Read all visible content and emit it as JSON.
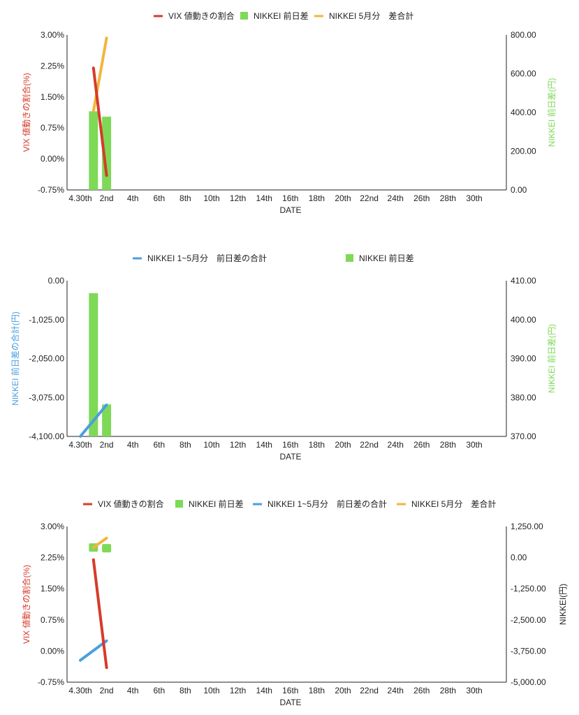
{
  "colors": {
    "vix": "#d63b2a",
    "nikkei_diff": "#7ed957",
    "nikkei_total": "#4a9fe0",
    "nikkei_may": "#f2b53d",
    "axis": "#222222"
  },
  "chart_data": [
    {
      "type": "bar+line",
      "xlabel": "DATE",
      "x_ticks": [
        "4.30th",
        "2nd",
        "4th",
        "6th",
        "8th",
        "10th",
        "12th",
        "14th",
        "16th",
        "18th",
        "20th",
        "22nd",
        "24th",
        "26th",
        "28th",
        "30th"
      ],
      "left_axis": {
        "label": "VIX 値動きの割合(%)",
        "ticks": [
          "3.00%",
          "2.25%",
          "1.50%",
          "0.75%",
          "0.00%",
          "-0.75%"
        ],
        "range": [
          -0.75,
          3.0
        ]
      },
      "right_axis": {
        "label": "NIKKEI 前日差(円)",
        "ticks": [
          "800.00",
          "600.00",
          "400.00",
          "200.00",
          "0.00"
        ],
        "range": [
          0,
          800
        ]
      },
      "legend": [
        "VIX 値動きの割合",
        "NIKKEI 前日差",
        "NIKKEI 5月分　差合計"
      ],
      "series": [
        {
          "name": "VIX 値動きの割合",
          "type": "line",
          "axis": "left",
          "color_key": "vix",
          "points": [
            [
              1,
              2.2
            ],
            [
              2,
              -0.4
            ]
          ]
        },
        {
          "name": "NIKKEI 前日差",
          "type": "bar",
          "axis": "right",
          "color_key": "nikkei_diff",
          "points": [
            [
              1,
              406
            ],
            [
              2,
              378
            ]
          ]
        },
        {
          "name": "NIKKEI 5月分　差合計",
          "type": "line",
          "axis": "right",
          "color_key": "nikkei_may",
          "points": [
            [
              1,
              406
            ],
            [
              2,
              784
            ]
          ]
        }
      ]
    },
    {
      "type": "bar+line",
      "xlabel": "DATE",
      "x_ticks": [
        "4.30th",
        "2nd",
        "4th",
        "6th",
        "8th",
        "10th",
        "12th",
        "14th",
        "16th",
        "18th",
        "20th",
        "22nd",
        "24th",
        "26th",
        "28th",
        "30th"
      ],
      "left_axis": {
        "label": "NIKKEI 前日差の合計(円)",
        "ticks": [
          "0.00",
          "-1,025.00",
          "-2,050.00",
          "-3,075.00",
          "-4,100.00"
        ],
        "range": [
          -4100,
          0
        ]
      },
      "right_axis": {
        "label": "NIKKEI 前日差(円)",
        "ticks": [
          "410.00",
          "400.00",
          "390.00",
          "380.00",
          "370.00"
        ],
        "range": [
          370,
          410
        ]
      },
      "legend": [
        "NIKKEI 1~5月分　前日差の合計",
        "NIKKEI 前日差"
      ],
      "series": [
        {
          "name": "NIKKEI 1~5月分　前日差の合計",
          "type": "line",
          "axis": "left",
          "color_key": "nikkei_total",
          "points": [
            [
              0,
              -4100
            ],
            [
              2,
              -3270
            ]
          ]
        },
        {
          "name": "NIKKEI 前日差",
          "type": "bar",
          "axis": "right",
          "color_key": "nikkei_diff",
          "points": [
            [
              1,
              406.8
            ],
            [
              2,
              378.2
            ]
          ]
        }
      ]
    },
    {
      "type": "bar+line",
      "xlabel": "DATE",
      "x_ticks": [
        "4.30th",
        "2nd",
        "4th",
        "6th",
        "8th",
        "10th",
        "12th",
        "14th",
        "16th",
        "18th",
        "20th",
        "22nd",
        "24th",
        "26th",
        "28th",
        "30th"
      ],
      "left_axis": {
        "label": "VIX 値動きの割合(%)",
        "ticks": [
          "3.00%",
          "2.25%",
          "1.50%",
          "0.75%",
          "0.00%",
          "-0.75%"
        ],
        "range": [
          -0.75,
          3.0
        ]
      },
      "right_axis": {
        "label": "NIKKEI(円)",
        "ticks": [
          "1,250.00",
          "0.00",
          "-1,250.00",
          "-2,500.00",
          "-3,750.00",
          "-5,000.00"
        ],
        "range": [
          -5000,
          1250
        ]
      },
      "legend": [
        "VIX 値動きの割合",
        "NIKKEI 前日差",
        "NIKKEI 1~5月分　前日差の合計",
        "NIKKEI 5月分　差合計"
      ],
      "series": [
        {
          "name": "VIX 値動きの割合",
          "type": "line",
          "axis": "left",
          "color_key": "vix",
          "points": [
            [
              1,
              2.2
            ],
            [
              2,
              -0.4
            ]
          ]
        },
        {
          "name": "NIKKEI 前日差",
          "type": "bar",
          "axis": "right",
          "color_key": "nikkei_diff",
          "points": [
            [
              1,
              406
            ],
            [
              2,
              378
            ]
          ]
        },
        {
          "name": "NIKKEI 1~5月分　前日差の合計",
          "type": "line",
          "axis": "right",
          "color_key": "nikkei_total",
          "points": [
            [
              0,
              -4120
            ],
            [
              2,
              -3340
            ]
          ]
        },
        {
          "name": "NIKKEI 5月分　差合計",
          "type": "line",
          "axis": "right",
          "color_key": "nikkei_may",
          "points": [
            [
              1,
              406
            ],
            [
              2,
              784
            ]
          ]
        }
      ]
    }
  ]
}
